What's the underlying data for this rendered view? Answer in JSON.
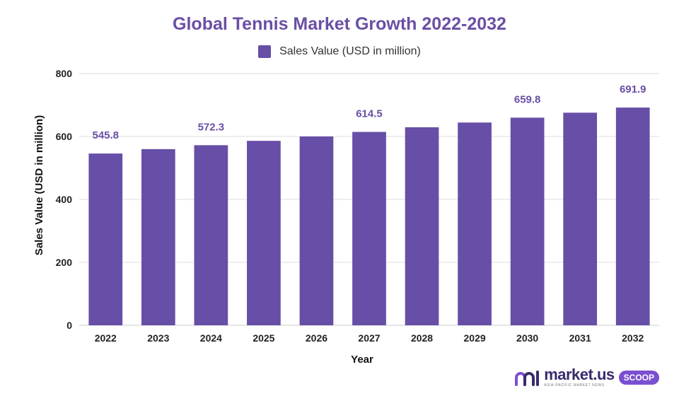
{
  "chart_data": {
    "type": "bar",
    "title": "Global Tennis Market Growth 2022-2032",
    "legend": {
      "label": "Sales Value (USD in million)",
      "position": "top-center"
    },
    "xlabel": "Year",
    "ylabel": "Sales Value (USD in million)",
    "categories": [
      "2022",
      "2023",
      "2024",
      "2025",
      "2026",
      "2027",
      "2028",
      "2029",
      "2030",
      "2031",
      "2032"
    ],
    "series": [
      {
        "name": "Sales Value (USD in million)",
        "values": [
          545.8,
          559.8,
          572.3,
          586.1,
          600.1,
          614.5,
          629.3,
          644.3,
          659.8,
          675.6,
          691.9
        ]
      }
    ],
    "data_labels": [
      {
        "index": 0,
        "text": "545.8"
      },
      {
        "index": 2,
        "text": "572.3"
      },
      {
        "index": 5,
        "text": "614.5"
      },
      {
        "index": 8,
        "text": "659.8"
      },
      {
        "index": 10,
        "text": "691.9"
      }
    ],
    "ylim": [
      0,
      800
    ],
    "yticks": [
      0,
      200,
      400,
      600,
      800
    ],
    "grid": true,
    "colors": {
      "bar": "#674ea7",
      "title": "#6a4fa5",
      "grid": "#dddddd",
      "axis": "#cccccc"
    }
  },
  "brand": {
    "name": "market.us",
    "tagline": "ASIA-PACIFIC MARKET NEWS",
    "badge": "SCOOP"
  }
}
